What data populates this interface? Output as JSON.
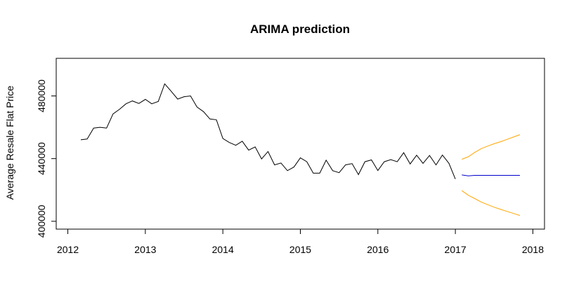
{
  "chart_data": {
    "type": "line",
    "title": "ARIMA prediction",
    "xlabel": "",
    "ylabel": "Average Resale Flat Price",
    "xlim": [
      2011.85,
      2018.15
    ],
    "ylim": [
      395000,
      504000
    ],
    "x_ticks": [
      2012,
      2013,
      2014,
      2015,
      2016,
      2017,
      2018
    ],
    "y_ticks": [
      400000,
      440000,
      480000
    ],
    "grid": false,
    "legend": "none",
    "colors": {
      "observed": "#000000",
      "forecast": "#0000cd",
      "bounds": "#ffa500"
    },
    "series": [
      {
        "x": [
          2012.167,
          2012.25,
          2012.333,
          2012.417,
          2012.5,
          2012.583,
          2012.667,
          2012.75,
          2012.833,
          2012.917,
          2013.0,
          2013.083,
          2013.167,
          2013.25,
          2013.333,
          2013.417,
          2013.5,
          2013.583,
          2013.667,
          2013.75,
          2013.833,
          2013.917,
          2014.0,
          2014.083,
          2014.167,
          2014.25,
          2014.333,
          2014.417,
          2014.5,
          2014.583,
          2014.667,
          2014.75,
          2014.833,
          2014.917,
          2015.0,
          2015.083,
          2015.167,
          2015.25,
          2015.333,
          2015.417,
          2015.5,
          2015.583,
          2015.667,
          2015.75,
          2015.833,
          2015.917,
          2016.0,
          2016.083,
          2016.167,
          2016.25,
          2016.333,
          2016.417,
          2016.5,
          2016.583,
          2016.667,
          2016.75,
          2016.833,
          2016.917,
          2017.0
        ],
        "values": [
          452000,
          452500,
          459500,
          460000,
          459500,
          468500,
          471500,
          475000,
          476800,
          475200,
          477800,
          475000,
          476500,
          487700,
          483000,
          478000,
          479500,
          480000,
          472900,
          470000,
          465300,
          464800,
          452800,
          450300,
          448500,
          451100,
          445400,
          447500,
          439800,
          444500,
          436000,
          437200,
          432300,
          434600,
          440500,
          438000,
          430700,
          430700,
          439000,
          432300,
          431000,
          436000,
          436800,
          429800,
          438000,
          439200,
          432400,
          438000,
          439300,
          438000,
          443800,
          436600,
          442200,
          437000,
          442000,
          436000,
          442300,
          437000,
          427000
        ]
      },
      {
        "x": [
          2017.083,
          2017.167,
          2017.25,
          2017.333,
          2017.417,
          2017.5,
          2017.583,
          2017.667,
          2017.75,
          2017.833
        ],
        "values": [
          429600,
          429000,
          429300,
          429300,
          429300,
          429300,
          429300,
          429300,
          429300,
          429300
        ]
      },
      {
        "x": [
          2017.083,
          2017.167,
          2017.25,
          2017.333,
          2017.417,
          2017.5,
          2017.583,
          2017.667,
          2017.75,
          2017.833
        ],
        "values": [
          439600,
          441200,
          444000,
          446300,
          448000,
          449500,
          450800,
          452300,
          453800,
          455300
        ]
      },
      {
        "x": [
          2017.083,
          2017.167,
          2017.25,
          2017.333,
          2017.417,
          2017.5,
          2017.583,
          2017.667,
          2017.75,
          2017.833
        ],
        "values": [
          419600,
          416600,
          414500,
          412300,
          410600,
          409000,
          407600,
          406300,
          405000,
          403700
        ]
      }
    ]
  }
}
